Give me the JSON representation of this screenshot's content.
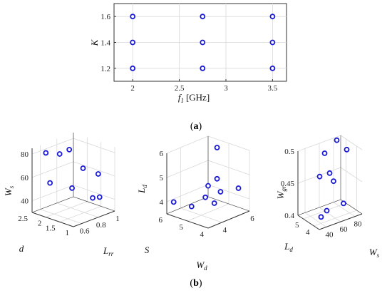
{
  "caption_a": {
    "open": "(",
    "letter": "a",
    "close": ")"
  },
  "caption_b": {
    "open": "(",
    "letter": "b",
    "close": ")"
  },
  "colors": {
    "marker": "#1a1ad6",
    "axis": "#333333",
    "grid": "#d9d9d9"
  },
  "chart_data": [
    {
      "id": "a",
      "type": "scatter",
      "xlabel": {
        "var": "f",
        "sub": "1",
        "unit": "[GHz]"
      },
      "ylabel": {
        "var": "K"
      },
      "xlim": [
        1.8,
        3.65
      ],
      "ylim": [
        1.1,
        1.7
      ],
      "xticks": [
        "2",
        "2.5",
        "3",
        "3.5"
      ],
      "yticks": [
        "1.2",
        "1.4",
        "1.6"
      ],
      "grid": true,
      "x": [
        2,
        2,
        2,
        2.75,
        2.75,
        2.75,
        3.5,
        3.5,
        3.5
      ],
      "y": [
        1.2,
        1.4,
        1.6,
        1.2,
        1.4,
        1.6,
        1.2,
        1.4,
        1.6
      ]
    },
    {
      "id": "b1",
      "type": "scatter3d",
      "xlabel": {
        "var": "L",
        "sub": "rr"
      },
      "ylabel": {
        "var": "d",
        "sub": ""
      },
      "zlabel": {
        "var": "W",
        "sub": "s"
      },
      "xlim": [
        0.5,
        1
      ],
      "ylim": [
        1,
        2.5
      ],
      "zlim": [
        30,
        85
      ],
      "xticks": [
        "0.6",
        "0.8",
        "1"
      ],
      "yticks": [
        "1",
        "1.5",
        "2",
        "2.5"
      ],
      "zticks": [
        "40",
        "60",
        "80"
      ],
      "x": [
        0.6,
        0.7,
        0.75,
        0.85,
        0.9,
        0.65,
        0.8,
        0.95,
        0.55
      ],
      "y": [
        2.3,
        2.1,
        1.9,
        1.7,
        1.3,
        1.5,
        1.2,
        1.4,
        2.0
      ],
      "z": [
        80,
        78,
        82,
        65,
        62,
        55,
        45,
        40,
        58
      ]
    },
    {
      "id": "b2",
      "type": "scatter3d",
      "xlabel": {
        "var": "W",
        "sub": "d"
      },
      "ylabel": {
        "var": "S",
        "sub": ""
      },
      "zlabel": {
        "var": "L",
        "sub": "d"
      },
      "xlim": [
        3,
        6
      ],
      "ylim": [
        4,
        6
      ],
      "zlim": [
        3.5,
        6
      ],
      "xticks": [
        "4",
        "6"
      ],
      "yticks": [
        "4",
        "5",
        "6"
      ],
      "zticks": [
        "4",
        "5",
        "6"
      ],
      "x": [
        3.2,
        3.6,
        4.0,
        4.2,
        4.5,
        4.8,
        5.0,
        5.5,
        5.9
      ],
      "y": [
        5.8,
        5.2,
        4.8,
        4.5,
        5.0,
        4.6,
        4.9,
        4.2,
        5.5
      ],
      "z": [
        4.0,
        3.9,
        4.3,
        4.1,
        4.6,
        4.4,
        4.8,
        4.5,
        5.7
      ]
    },
    {
      "id": "b3",
      "type": "scatter3d",
      "xlabel": {
        "var": "W",
        "sub": "s"
      },
      "ylabel": {
        "var": "L",
        "sub": "d"
      },
      "zlabel": {
        "var": "W",
        "sub": "gr"
      },
      "xlim": [
        30,
        90
      ],
      "ylim": [
        3.5,
        5.5
      ],
      "zlim": [
        0.4,
        0.5
      ],
      "xticks": [
        "40",
        "60",
        "80"
      ],
      "yticks": [
        "4",
        "5"
      ],
      "zticks": [
        "0.4",
        "0.45",
        "0.5"
      ],
      "x": [
        40,
        45,
        50,
        55,
        60,
        65,
        70,
        80,
        85
      ],
      "y": [
        4.0,
        3.8,
        4.8,
        4.2,
        5.0,
        4.5,
        3.9,
        5.2,
        4.6
      ],
      "z": [
        0.41,
        0.42,
        0.46,
        0.47,
        0.49,
        0.45,
        0.42,
        0.5,
        0.49
      ]
    }
  ]
}
